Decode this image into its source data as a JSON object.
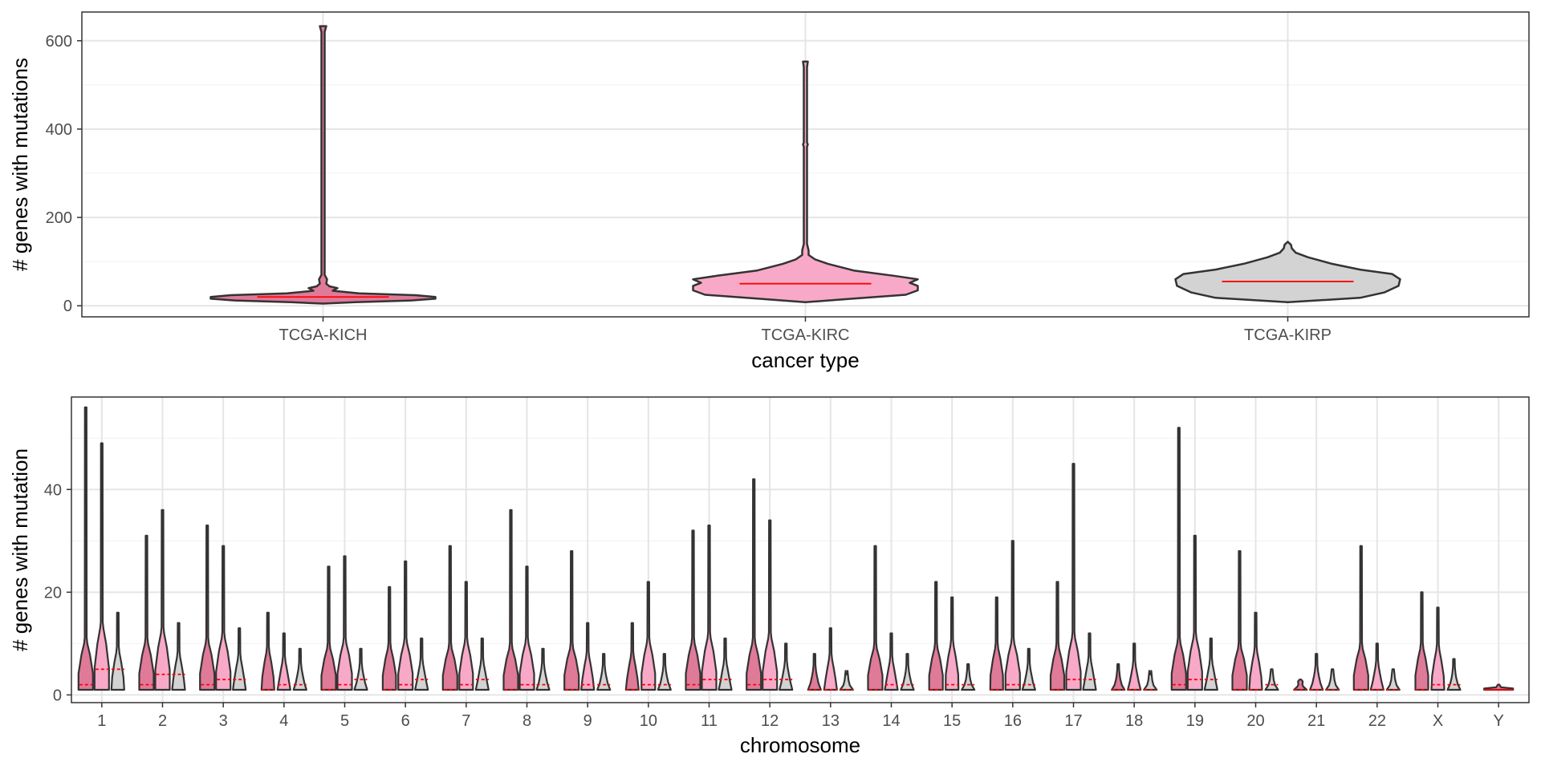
{
  "chart_data": [
    {
      "type": "violin",
      "xlabel": "cancer type",
      "ylabel": "# genes with mutations",
      "ylim": [
        -25,
        665
      ],
      "yticks": [
        0,
        200,
        400,
        600
      ],
      "grid": true,
      "categories": [
        "TCGA-KICH",
        "TCGA-KIRC",
        "TCGA-KIRP"
      ],
      "fill_colors": [
        "#e07a99",
        "#f8a9c7",
        "#d3d3d3"
      ],
      "median_color": "#ff0000",
      "groups": [
        {
          "category": "TCGA-KICH",
          "min": 5,
          "max": 633,
          "median": 20
        },
        {
          "category": "TCGA-KIRC",
          "min": 8,
          "max": 553,
          "median": 50
        },
        {
          "category": "TCGA-KIRP",
          "min": 8,
          "max": 145,
          "median": 55
        }
      ]
    },
    {
      "type": "violin",
      "xlabel": "chromosome",
      "ylabel": "# genes with mutation",
      "ylim": [
        -1.5,
        58
      ],
      "yticks": [
        0,
        20,
        40
      ],
      "grid": true,
      "categories": [
        "1",
        "2",
        "3",
        "4",
        "5",
        "6",
        "7",
        "8",
        "9",
        "10",
        "11",
        "12",
        "13",
        "14",
        "15",
        "16",
        "17",
        "18",
        "19",
        "20",
        "21",
        "22",
        "X",
        "Y"
      ],
      "series": [
        {
          "name": "TCGA-KICH",
          "fill": "#e07a99",
          "max": [
            56,
            31,
            33,
            16,
            25,
            21,
            29,
            36,
            28,
            14,
            32,
            42,
            8,
            29,
            22,
            19,
            22,
            6,
            52,
            28,
            3,
            29,
            20,
            2
          ],
          "median": [
            2,
            2,
            2,
            1,
            1,
            1,
            1,
            1,
            1,
            1,
            2,
            2,
            1,
            1,
            1,
            1,
            1,
            1,
            2,
            1,
            1,
            1,
            1,
            1
          ]
        },
        {
          "name": "TCGA-KIRC",
          "fill": "#f8a9c7",
          "max": [
            49,
            36,
            29,
            12,
            27,
            26,
            22,
            25,
            14,
            22,
            33,
            34,
            13,
            12,
            19,
            30,
            45,
            10,
            31,
            16,
            8,
            10,
            17,
            null
          ],
          "median": [
            5,
            4,
            3,
            2,
            2,
            2,
            2,
            2,
            2,
            2,
            3,
            3,
            1,
            2,
            2,
            2,
            3,
            1,
            3,
            1,
            1,
            1,
            2,
            null
          ]
        },
        {
          "name": "TCGA-KIRP",
          "fill": "#d3d3d3",
          "max": [
            16,
            14,
            13,
            9,
            9,
            11,
            11,
            9,
            8,
            8,
            11,
            10,
            4,
            8,
            6,
            9,
            12,
            4,
            11,
            5,
            5,
            5,
            7,
            null
          ],
          "median": [
            5,
            4,
            3,
            2,
            3,
            3,
            3,
            2,
            2,
            2,
            3,
            3,
            1,
            2,
            2,
            2,
            3,
            1,
            3,
            2,
            1,
            1,
            2,
            null
          ]
        }
      ]
    }
  ]
}
